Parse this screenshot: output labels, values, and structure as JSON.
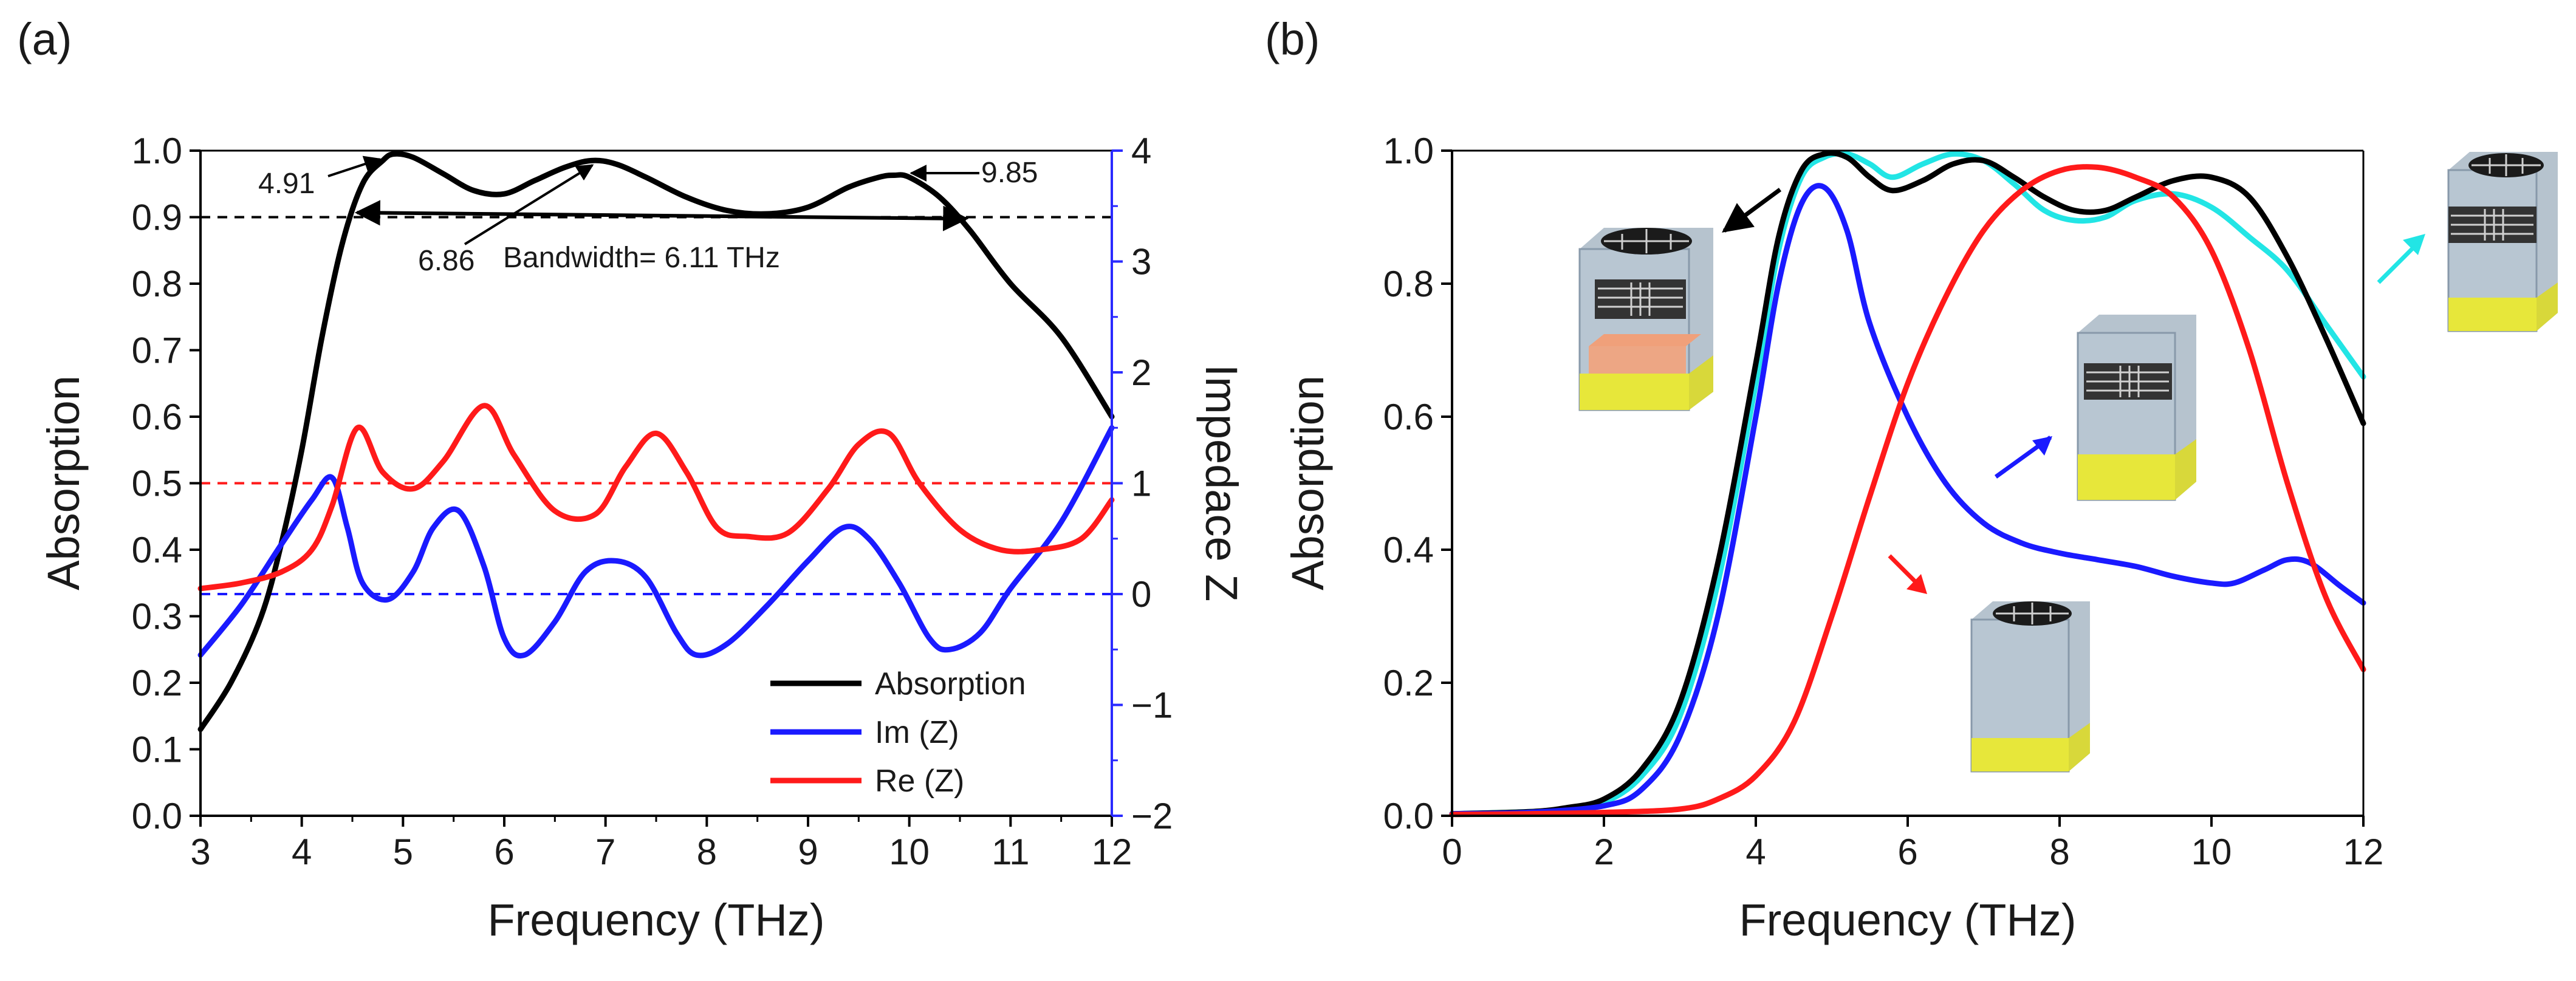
{
  "colors": {
    "black": "#000000",
    "blue": "#1a1aff",
    "red": "#ff1a1a",
    "cyan": "#22e5e5",
    "rightAxis": "#2a2aff"
  },
  "chart_data": [
    {
      "panel_label": "(a)",
      "type": "line",
      "xlabel": "Frequency (THz)",
      "ylabel": "Absorption",
      "y2label": "Impedace Z",
      "xlim": [
        3,
        12
      ],
      "ylim": [
        0,
        1
      ],
      "y2lim": [
        -2,
        4
      ],
      "xticks": [
        "3",
        "4",
        "5",
        "6",
        "7",
        "8",
        "9",
        "10",
        "11",
        "12"
      ],
      "yticks": [
        "0.0",
        "0.1",
        "0.2",
        "0.3",
        "0.4",
        "0.5",
        "0.6",
        "0.7",
        "0.8",
        "0.9",
        "1.0"
      ],
      "y2ticks": [
        "−2",
        "−1",
        "0",
        "1",
        "2",
        "3",
        "4"
      ],
      "series": [
        {
          "name": "Absorption",
          "axis": "left",
          "color": "#000000",
          "x": [
            3.0,
            3.3,
            3.6,
            3.8,
            4.0,
            4.2,
            4.4,
            4.6,
            4.8,
            4.91,
            5.1,
            5.4,
            5.7,
            6.0,
            6.3,
            6.6,
            6.86,
            7.1,
            7.4,
            7.8,
            8.2,
            8.6,
            9.0,
            9.4,
            9.7,
            9.85,
            10.0,
            10.3,
            10.6,
            11.0,
            11.5,
            12.0
          ],
          "y": [
            0.13,
            0.2,
            0.3,
            0.41,
            0.55,
            0.72,
            0.86,
            0.95,
            0.985,
            0.995,
            0.99,
            0.965,
            0.94,
            0.935,
            0.955,
            0.975,
            0.985,
            0.98,
            0.96,
            0.93,
            0.91,
            0.905,
            0.915,
            0.945,
            0.96,
            0.963,
            0.96,
            0.93,
            0.88,
            0.8,
            0.72,
            0.6
          ]
        },
        {
          "name": "Im (Z)",
          "axis": "right",
          "color": "#1a1aff",
          "x": [
            3.0,
            3.4,
            3.8,
            4.1,
            4.3,
            4.45,
            4.6,
            4.85,
            5.1,
            5.3,
            5.55,
            5.8,
            6.0,
            6.2,
            6.5,
            6.8,
            7.1,
            7.4,
            7.7,
            7.9,
            8.2,
            8.6,
            9.0,
            9.35,
            9.6,
            9.9,
            10.2,
            10.4,
            10.7,
            11.0,
            11.5,
            12.0
          ],
          "y": [
            -0.55,
            -0.1,
            0.45,
            0.85,
            1.05,
            0.6,
            0.1,
            -0.05,
            0.2,
            0.6,
            0.75,
            0.25,
            -0.4,
            -0.55,
            -0.25,
            0.2,
            0.3,
            0.15,
            -0.35,
            -0.55,
            -0.45,
            -0.1,
            0.3,
            0.6,
            0.5,
            0.1,
            -0.4,
            -0.5,
            -0.35,
            0.05,
            0.65,
            1.5
          ]
        },
        {
          "name": "Re (Z)",
          "axis": "right",
          "color": "#ff1a1a",
          "x": [
            3.0,
            3.4,
            3.8,
            4.1,
            4.3,
            4.55,
            4.8,
            5.1,
            5.4,
            5.8,
            6.1,
            6.5,
            6.9,
            7.2,
            7.5,
            7.8,
            8.1,
            8.4,
            8.8,
            9.2,
            9.5,
            9.8,
            10.1,
            10.5,
            10.9,
            11.3,
            11.7,
            12.0
          ],
          "y": [
            0.05,
            0.1,
            0.2,
            0.4,
            0.8,
            1.5,
            1.1,
            0.95,
            1.2,
            1.7,
            1.25,
            0.75,
            0.72,
            1.15,
            1.45,
            1.1,
            0.6,
            0.52,
            0.55,
            0.95,
            1.35,
            1.45,
            1.0,
            0.58,
            0.4,
            0.4,
            0.5,
            0.85
          ]
        }
      ],
      "reference_lines": [
        {
          "axis": "left",
          "value": 0.9,
          "color": "#000000"
        },
        {
          "axis": "left",
          "value": 0.5,
          "color": "#ff1a1a"
        },
        {
          "axis": "right",
          "value": 0,
          "color": "#1a1aff"
        }
      ],
      "annotations": {
        "a1": "4.91",
        "a2": "6.86",
        "a3": "9.85",
        "bandwidth": "Bandwidth= 6.11 THz"
      },
      "legend": {
        "position": "bottom-right"
      }
    },
    {
      "panel_label": "(b)",
      "type": "line",
      "xlabel": "Frequency (THz)",
      "ylabel": "Absorption",
      "xlim": [
        0,
        12
      ],
      "ylim": [
        0,
        1
      ],
      "xticks": [
        "0",
        "2",
        "4",
        "6",
        "8",
        "10",
        "12"
      ],
      "yticks": [
        "0.0",
        "0.2",
        "0.4",
        "0.6",
        "0.8",
        "1.0"
      ],
      "series": [
        {
          "color": "#22e5e5",
          "x": [
            0,
            1,
            1.5,
            2,
            2.5,
            3,
            3.5,
            4,
            4.3,
            4.6,
            4.9,
            5.2,
            5.5,
            5.8,
            6.2,
            6.6,
            7.0,
            7.4,
            7.8,
            8.2,
            8.6,
            9.0,
            9.5,
            10.0,
            10.5,
            11.0,
            11.5,
            12.0
          ],
          "y": [
            0.003,
            0.006,
            0.01,
            0.02,
            0.06,
            0.15,
            0.35,
            0.65,
            0.85,
            0.96,
            0.99,
            0.995,
            0.98,
            0.96,
            0.98,
            0.995,
            0.985,
            0.95,
            0.91,
            0.895,
            0.9,
            0.925,
            0.935,
            0.915,
            0.87,
            0.82,
            0.74,
            0.66
          ]
        },
        {
          "color": "#000000",
          "x": [
            0,
            1,
            1.5,
            2,
            2.5,
            3,
            3.5,
            4,
            4.3,
            4.6,
            4.9,
            5.2,
            5.5,
            5.8,
            6.2,
            6.6,
            7.0,
            7.4,
            7.8,
            8.2,
            8.6,
            9.0,
            9.5,
            10.0,
            10.5,
            11.0,
            11.5,
            12.0
          ],
          "y": [
            0.003,
            0.006,
            0.012,
            0.025,
            0.07,
            0.17,
            0.38,
            0.68,
            0.87,
            0.97,
            0.995,
            0.99,
            0.96,
            0.94,
            0.955,
            0.98,
            0.985,
            0.96,
            0.93,
            0.91,
            0.91,
            0.93,
            0.955,
            0.96,
            0.93,
            0.84,
            0.72,
            0.59
          ]
        },
        {
          "color": "#1a1aff",
          "x": [
            0,
            1,
            2,
            2.5,
            3,
            3.5,
            4,
            4.3,
            4.6,
            4.9,
            5.2,
            5.5,
            6.0,
            6.5,
            7.0,
            7.5,
            8.0,
            8.5,
            9.0,
            9.5,
            10.0,
            10.3,
            10.7,
            11.0,
            11.3,
            11.7,
            12.0
          ],
          "y": [
            0.003,
            0.005,
            0.015,
            0.04,
            0.12,
            0.3,
            0.6,
            0.8,
            0.92,
            0.945,
            0.88,
            0.74,
            0.6,
            0.5,
            0.44,
            0.41,
            0.395,
            0.385,
            0.375,
            0.36,
            0.35,
            0.35,
            0.37,
            0.385,
            0.38,
            0.345,
            0.32
          ]
        },
        {
          "color": "#ff1a1a",
          "x": [
            0,
            1,
            2,
            3,
            3.5,
            4,
            4.5,
            5,
            5.5,
            6,
            6.5,
            7,
            7.5,
            8,
            8.5,
            9,
            9.5,
            10,
            10.5,
            11,
            11.5,
            12
          ],
          "y": [
            0.002,
            0.003,
            0.005,
            0.01,
            0.025,
            0.06,
            0.14,
            0.3,
            0.48,
            0.65,
            0.78,
            0.88,
            0.94,
            0.97,
            0.975,
            0.96,
            0.93,
            0.85,
            0.7,
            0.5,
            0.33,
            0.22
          ]
        }
      ]
    }
  ]
}
